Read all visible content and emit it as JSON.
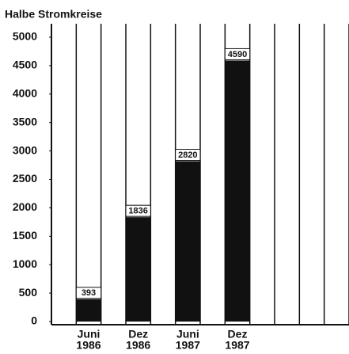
{
  "chart_data": {
    "type": "bar",
    "y_axis_label": "Halbe Stromkreise",
    "categories": [
      [
        "Juni",
        "1986"
      ],
      [
        "Dez",
        "1986"
      ],
      [
        "Juni",
        "1987"
      ],
      [
        "Dez",
        "1987"
      ]
    ],
    "values": [
      393,
      1836,
      2820,
      4590
    ],
    "color": "#111111",
    "ylim": [
      0,
      5000
    ],
    "yticks": [
      0,
      500,
      1000,
      1500,
      2000,
      2500,
      3000,
      3500,
      4000,
      4500,
      5000
    ]
  }
}
